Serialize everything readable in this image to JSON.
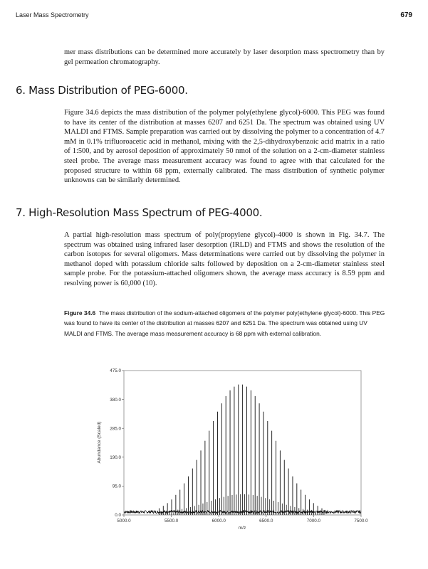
{
  "header": {
    "running_title": "Laser Mass Spectrometry",
    "page_number": "679"
  },
  "intro_paragraph": "mer mass distributions can be determined more accurately by laser desorption mass spectrometry than by gel permeation chromatography.",
  "sections": [
    {
      "heading": "6. Mass Distribution of PEG-6000.",
      "body": "Figure 34.6 depicts the mass distribution of the polymer poly(ethylene glycol)-6000. This PEG was found to have its center of the distribution at masses 6207 and 6251 Da. The spectrum was obtained using UV MALDI and FTMS. Sample preparation was carried out by dissolving the polymer to a concentration of 4.7 mM in 0.1% trifluoroacetic acid in methanol, mixing with the 2,5-dihydroxybenzoic acid matrix in a ratio of 1:500, and by aerosol deposition of approximately 50 nmol of the solution on a 2-cm-diameter stainless steel probe. The average mass measurement accuracy was found to agree with that calculated for the proposed structure to within 68 ppm, externally calibrated. The mass distribution of synthetic polymer unknowns can be similarly determined."
    },
    {
      "heading": "7. High-Resolution Mass Spectrum of PEG-4000.",
      "body": "A partial high-resolution mass spectrum of poly(propylene glycol)-4000 is shown in Fig. 34.7. The spectrum was obtained using infrared laser desorption (IRLD) and FTMS and shows the resolution of the carbon isotopes for several oligomers. Mass determinations were carried out by dissolving the polymer in methanol doped with potassium chloride salts followed by deposition on a 2-cm-diameter stainless steel sample probe. For the potassium-attached oligomers shown, the average mass accuracy is 8.59 ppm and resolving power is 60,000 (10)."
    }
  ],
  "figure_caption": {
    "label": "Figure 34.6",
    "text": "The mass distribution of the sodium-attached oligomers of the polymer poly(ethylene glycol)-6000. This PEG was found to have its center of the distribution at masses 6207 and 6251 Da. The spectrum was obtained using UV MALDI and FTMS. The average mass measurement accuracy is 68 ppm with external calibration."
  },
  "chart_data": {
    "type": "bar",
    "xlabel": "m/z",
    "ylabel": "Abundance (Scaled)",
    "xlim": [
      5000,
      7500
    ],
    "ylim": [
      0,
      475
    ],
    "x_ticks": [
      "5000.0",
      "5500.0",
      "6000.0",
      "6500.0",
      "7000.0",
      "7500.0"
    ],
    "y_ticks": [
      "0.0",
      "95.0",
      "190.0",
      "285.0",
      "380.0",
      "475.0"
    ],
    "grid": false,
    "color": "#111111",
    "peaks": {
      "mz": [
        5371,
        5415,
        5459,
        5503,
        5547,
        5591,
        5635,
        5679,
        5723,
        5767,
        5811,
        5855,
        5899,
        5943,
        5987,
        6031,
        6075,
        6119,
        6163,
        6207,
        6251,
        6295,
        6339,
        6383,
        6427,
        6471,
        6515,
        6559,
        6603,
        6647,
        6691,
        6735,
        6779,
        6823,
        6867,
        6911,
        6955,
        6999,
        7043,
        7087
      ],
      "abundance": [
        22,
        30,
        39,
        51,
        66,
        83,
        104,
        127,
        153,
        181,
        212,
        244,
        277,
        309,
        340,
        367,
        391,
        410,
        422,
        429,
        429,
        422,
        410,
        391,
        367,
        340,
        309,
        277,
        244,
        212,
        181,
        153,
        127,
        104,
        83,
        66,
        51,
        39,
        30,
        22
      ]
    },
    "baseline_noise_level": 10
  }
}
